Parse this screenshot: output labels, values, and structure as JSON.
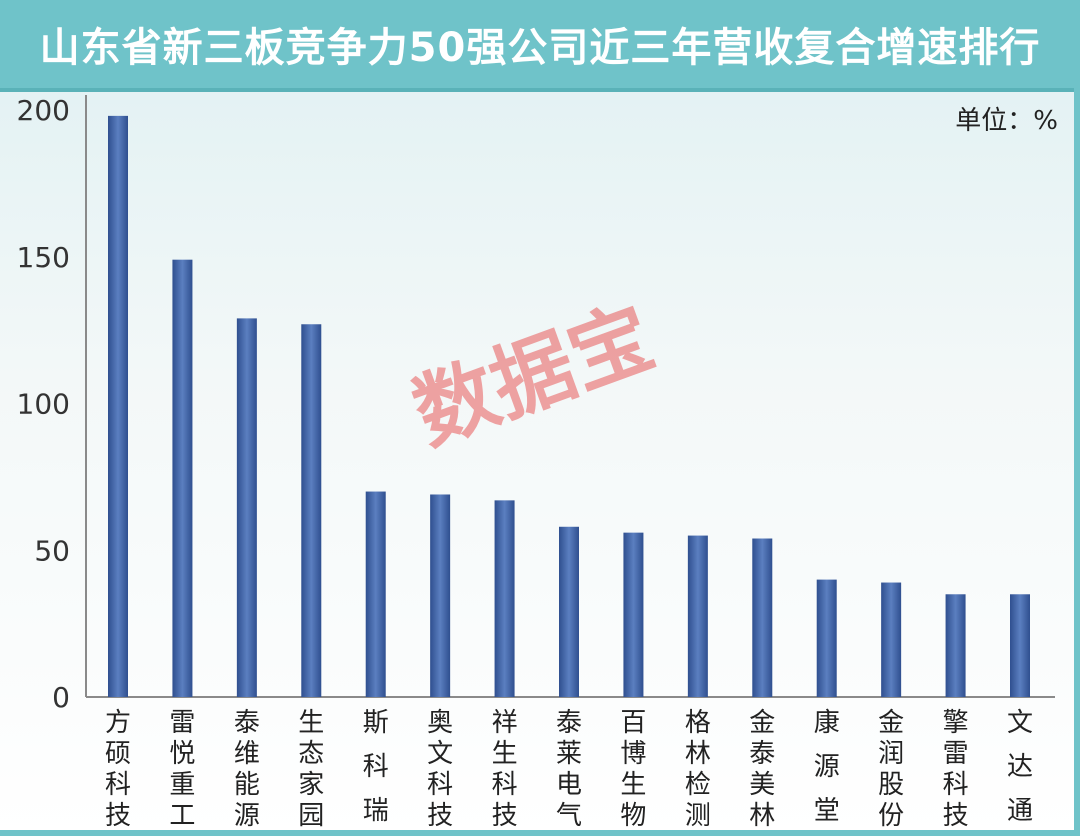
{
  "title": "山东省新三板竞争力50强公司近三年营收复合增速排行",
  "unit_label": "单位：%",
  "watermark": "数据宝",
  "colors": {
    "bar": "#4a6aa8",
    "title_bg": "#6fc3c9"
  },
  "chart_data": {
    "type": "bar",
    "categories": [
      "方硕科技",
      "雷悦重工",
      "泰维能源",
      "生态家园",
      "斯科瑞",
      "奥文科技",
      "祥生科技",
      "泰莱电气",
      "百博生物",
      "格林检测",
      "金泰美林",
      "康源堂",
      "金润股份",
      "擎雷科技",
      "文达通"
    ],
    "values": [
      198,
      149,
      129,
      127,
      70,
      69,
      67,
      58,
      56,
      55,
      54,
      40,
      39,
      35,
      35
    ],
    "yticks": [
      0,
      50,
      100,
      150,
      200
    ],
    "ylim": [
      0,
      200
    ],
    "grid": false
  }
}
